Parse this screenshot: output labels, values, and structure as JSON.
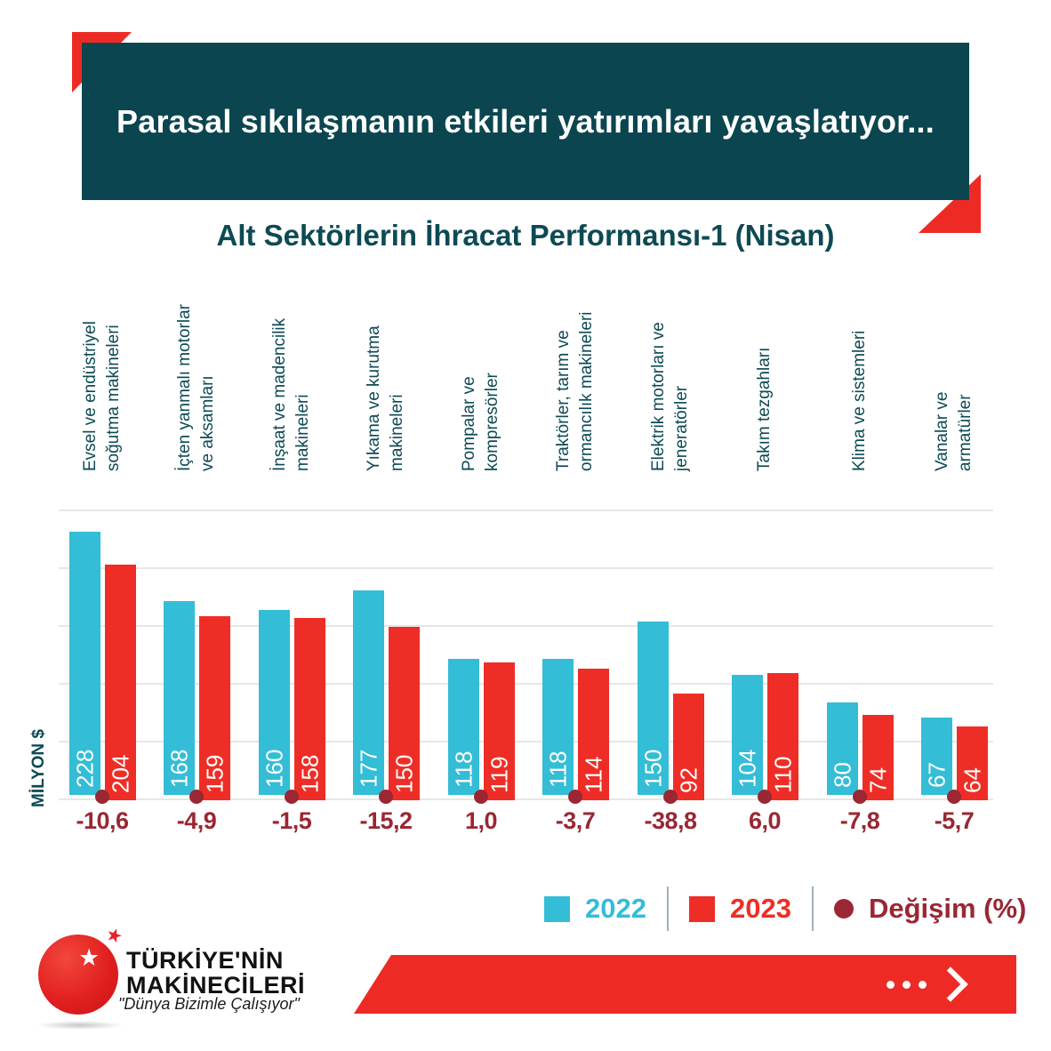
{
  "header": {
    "title": "Parasal sıkılaşmanın etkileri yatırımları yavaşlatıyor..."
  },
  "chart_data": {
    "type": "bar",
    "title": "Alt Sektörlerin İhracat Performansı-1 (Nisan)",
    "ylabel": "MİLYON $",
    "ylim": [
      0,
      250
    ],
    "gridline_step": 50,
    "grid": true,
    "legend_position": "bottom",
    "categories": [
      "Evsel ve endüstriyel soğutma makineleri",
      "İçten yanmalı motorlar ve aksamları",
      "İnşaat ve madencilik makineleri",
      "Yıkama ve kurutma makineleri",
      "Pompalar ve kompresörler",
      "Traktörler, tarım ve ormancılık makineleri",
      "Elektrik motorları ve jeneratörler",
      "Takım tezgahları",
      "Klima ve sistemleri",
      "Vanalar ve armatürler"
    ],
    "category_lines": [
      [
        "Evsel ve endüstriyel",
        "soğutma makineleri"
      ],
      [
        "İçten yanmalı motorlar",
        "ve aksamları"
      ],
      [
        "İnşaat ve madencilik",
        "makineleri"
      ],
      [
        "Yıkama ve kurutma",
        "makineleri"
      ],
      [
        "Pompalar ve",
        "kompresörler"
      ],
      [
        "Traktörler, tarım ve",
        "ormancılık makineleri"
      ],
      [
        "Elektrik motorları ve",
        "jeneratörler"
      ],
      [
        "Takım tezgahları"
      ],
      [
        "Klima ve sistemleri"
      ],
      [
        "Vanalar ve",
        "armatürler"
      ]
    ],
    "series": [
      {
        "name": "2022",
        "color": "#34bdd6",
        "values": [
          228,
          168,
          160,
          177,
          118,
          118,
          150,
          104,
          80,
          67
        ]
      },
      {
        "name": "2023",
        "color": "#ee2e26",
        "values": [
          204,
          159,
          158,
          150,
          119,
          114,
          92,
          110,
          74,
          64
        ]
      }
    ],
    "change_percent": {
      "name": "Değişim (%)",
      "color": "#9a2733",
      "values": [
        "-10,6",
        "-4,9",
        "-1,5",
        "-15,2",
        "1,0",
        "-3,7",
        "-38,8",
        "6,0",
        "-7,8",
        "-5,7"
      ]
    }
  },
  "colors": {
    "header_background": "#0b4650",
    "title_text": "#0d4a54",
    "accent_red": "#ed2b24",
    "series_2022": "#34bdd6",
    "series_2023": "#ee2e26",
    "change_dark_red": "#9a2733",
    "gridline": "#e7e7e7"
  },
  "footer": {
    "brand_line1": "TÜRKİYE'NİN",
    "brand_line2": "MAKİNECİLERİ",
    "slogan": "\"Dünya Bizimle Çalışıyor\""
  }
}
